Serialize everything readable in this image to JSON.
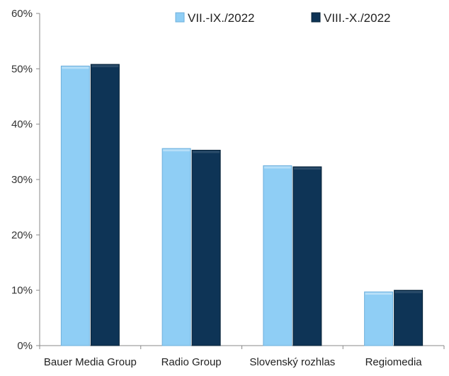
{
  "chart_data": {
    "type": "bar",
    "categories": [
      "Bauer Media Group",
      "Radio Group",
      "Slovenský rozhlas",
      "Regiomedia"
    ],
    "series": [
      {
        "name": "VII.-IX./2022",
        "values": [
          50.5,
          35.6,
          32.5,
          9.7
        ],
        "color": "#8fcef5",
        "color_edge": "#6fb0dc"
      },
      {
        "name": "VIII.-X./2022",
        "values": [
          50.8,
          35.3,
          32.3,
          10.0
        ],
        "color": "#0e3456",
        "color_edge": "#082338"
      }
    ],
    "ylim": [
      0,
      60
    ],
    "yticks": [
      "0%",
      "10%",
      "20%",
      "30%",
      "40%",
      "50%",
      "60%"
    ],
    "ytick_values": [
      0,
      10,
      20,
      30,
      40,
      50,
      60
    ],
    "legend_position": "top-right",
    "grid": false,
    "title": "",
    "xlabel": "",
    "ylabel": ""
  }
}
